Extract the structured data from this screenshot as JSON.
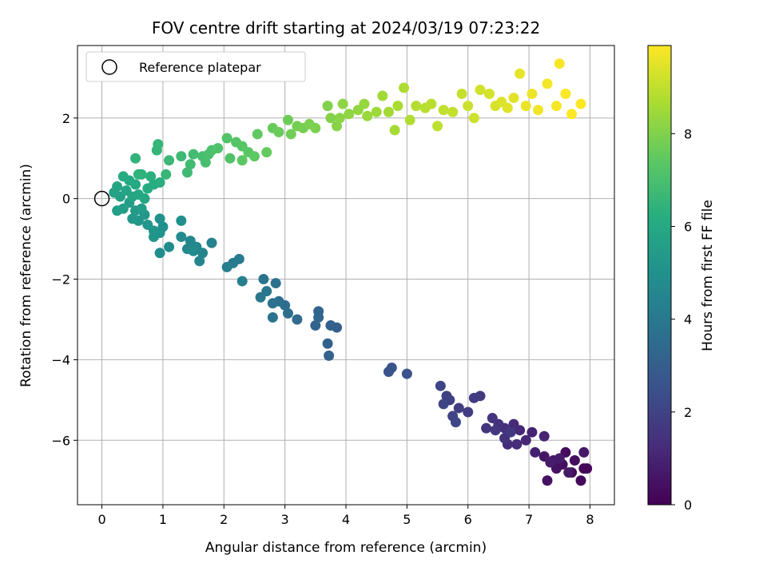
{
  "chart_data": {
    "type": "scatter",
    "title": "FOV centre drift starting at 2024/03/19 07:23:22",
    "xlabel": "Angular distance from reference (arcmin)",
    "ylabel": "Rotation from reference (arcmin)",
    "xlim": [
      -0.4,
      8.4
    ],
    "ylim": [
      -7.6,
      3.8
    ],
    "xticks": [
      0,
      1,
      2,
      3,
      4,
      5,
      6,
      7,
      8
    ],
    "yticks": [
      -6,
      -4,
      -2,
      0,
      2
    ],
    "grid": true,
    "legend": {
      "entries": [
        "Reference platepar"
      ],
      "placement": "top-left"
    },
    "reference_point": {
      "x": 0,
      "y": 0
    },
    "colorbar": {
      "label": "Hours from first FF file",
      "colormap": "viridis",
      "range": [
        0,
        9.9
      ],
      "ticks": [
        0,
        2,
        4,
        6,
        8
      ]
    },
    "points": [
      {
        "x": 7.9,
        "y": -6.7,
        "h": 0.1
      },
      {
        "x": 7.95,
        "y": -6.7,
        "h": 0.15
      },
      {
        "x": 7.85,
        "y": -7.0,
        "h": 0.2
      },
      {
        "x": 7.7,
        "y": -6.8,
        "h": 0.25
      },
      {
        "x": 7.6,
        "y": -6.3,
        "h": 0.3
      },
      {
        "x": 7.75,
        "y": -6.5,
        "h": 0.35
      },
      {
        "x": 7.55,
        "y": -6.6,
        "h": 0.4
      },
      {
        "x": 7.45,
        "y": -6.7,
        "h": 0.45
      },
      {
        "x": 7.3,
        "y": -7.0,
        "h": 0.5
      },
      {
        "x": 7.4,
        "y": -6.5,
        "h": 0.55
      },
      {
        "x": 7.25,
        "y": -6.4,
        "h": 0.6
      },
      {
        "x": 7.9,
        "y": -6.3,
        "h": 0.65
      },
      {
        "x": 7.65,
        "y": -6.8,
        "h": 0.7
      },
      {
        "x": 7.5,
        "y": -6.45,
        "h": 0.75
      },
      {
        "x": 7.35,
        "y": -6.55,
        "h": 0.8
      },
      {
        "x": 7.1,
        "y": -6.3,
        "h": 0.9
      },
      {
        "x": 7.05,
        "y": -5.8,
        "h": 1.0
      },
      {
        "x": 7.25,
        "y": -5.9,
        "h": 1.05
      },
      {
        "x": 6.95,
        "y": -6.0,
        "h": 1.1
      },
      {
        "x": 6.85,
        "y": -5.75,
        "h": 1.15
      },
      {
        "x": 6.75,
        "y": -5.6,
        "h": 1.2
      },
      {
        "x": 6.8,
        "y": -6.1,
        "h": 1.25
      },
      {
        "x": 6.65,
        "y": -6.1,
        "h": 1.3
      },
      {
        "x": 6.6,
        "y": -5.7,
        "h": 1.35
      },
      {
        "x": 6.5,
        "y": -5.6,
        "h": 1.4
      },
      {
        "x": 6.6,
        "y": -5.95,
        "h": 1.45
      },
      {
        "x": 6.4,
        "y": -5.45,
        "h": 1.5
      },
      {
        "x": 6.3,
        "y": -5.7,
        "h": 1.55
      },
      {
        "x": 6.45,
        "y": -5.75,
        "h": 1.6
      },
      {
        "x": 6.7,
        "y": -5.8,
        "h": 1.65
      },
      {
        "x": 6.2,
        "y": -4.9,
        "h": 1.7
      },
      {
        "x": 6.1,
        "y": -4.95,
        "h": 1.75
      },
      {
        "x": 6.0,
        "y": -5.3,
        "h": 1.8
      },
      {
        "x": 5.85,
        "y": -5.2,
        "h": 1.85
      },
      {
        "x": 5.7,
        "y": -5.0,
        "h": 1.9
      },
      {
        "x": 5.65,
        "y": -4.9,
        "h": 1.95
      },
      {
        "x": 5.75,
        "y": -5.4,
        "h": 2.0
      },
      {
        "x": 5.6,
        "y": -5.1,
        "h": 2.05
      },
      {
        "x": 5.55,
        "y": -4.65,
        "h": 2.1
      },
      {
        "x": 5.8,
        "y": -5.55,
        "h": 2.15
      },
      {
        "x": 5.0,
        "y": -4.35,
        "h": 2.5
      },
      {
        "x": 4.75,
        "y": -4.2,
        "h": 2.55
      },
      {
        "x": 4.7,
        "y": -4.3,
        "h": 2.6
      },
      {
        "x": 3.85,
        "y": -3.2,
        "h": 3.0
      },
      {
        "x": 3.75,
        "y": -3.15,
        "h": 3.05
      },
      {
        "x": 3.7,
        "y": -3.6,
        "h": 3.1
      },
      {
        "x": 3.72,
        "y": -3.9,
        "h": 3.15
      },
      {
        "x": 3.55,
        "y": -2.8,
        "h": 3.2
      },
      {
        "x": 3.5,
        "y": -3.15,
        "h": 3.25
      },
      {
        "x": 3.55,
        "y": -2.95,
        "h": 3.3
      },
      {
        "x": 3.2,
        "y": -3.0,
        "h": 3.5
      },
      {
        "x": 3.05,
        "y": -2.85,
        "h": 3.55
      },
      {
        "x": 3.0,
        "y": -2.65,
        "h": 3.6
      },
      {
        "x": 2.9,
        "y": -2.55,
        "h": 3.65
      },
      {
        "x": 2.8,
        "y": -2.6,
        "h": 3.7
      },
      {
        "x": 2.85,
        "y": -2.1,
        "h": 3.75
      },
      {
        "x": 2.8,
        "y": -2.95,
        "h": 3.8
      },
      {
        "x": 2.65,
        "y": -2.0,
        "h": 3.85
      },
      {
        "x": 2.7,
        "y": -2.3,
        "h": 3.9
      },
      {
        "x": 2.6,
        "y": -2.45,
        "h": 3.95
      },
      {
        "x": 2.25,
        "y": -1.5,
        "h": 4.1
      },
      {
        "x": 2.15,
        "y": -1.6,
        "h": 4.15
      },
      {
        "x": 2.05,
        "y": -1.7,
        "h": 4.2
      },
      {
        "x": 2.3,
        "y": -2.05,
        "h": 4.25
      },
      {
        "x": 1.8,
        "y": -1.1,
        "h": 4.4
      },
      {
        "x": 1.65,
        "y": -1.35,
        "h": 4.45
      },
      {
        "x": 1.6,
        "y": -1.55,
        "h": 4.5
      },
      {
        "x": 1.55,
        "y": -1.2,
        "h": 4.55
      },
      {
        "x": 1.45,
        "y": -1.05,
        "h": 4.6
      },
      {
        "x": 1.4,
        "y": -1.25,
        "h": 4.65
      },
      {
        "x": 1.5,
        "y": -1.3,
        "h": 4.7
      },
      {
        "x": 1.3,
        "y": -0.95,
        "h": 4.75
      },
      {
        "x": 1.1,
        "y": -1.2,
        "h": 4.8
      },
      {
        "x": 0.95,
        "y": -1.35,
        "h": 4.85
      },
      {
        "x": 1.3,
        "y": -0.55,
        "h": 4.9
      },
      {
        "x": 1.0,
        "y": -0.7,
        "h": 4.95
      },
      {
        "x": 0.95,
        "y": -0.5,
        "h": 5.0
      },
      {
        "x": 0.95,
        "y": -0.85,
        "h": 5.05
      },
      {
        "x": 0.85,
        "y": -0.95,
        "h": 5.1
      },
      {
        "x": 0.85,
        "y": -0.8,
        "h": 5.15
      },
      {
        "x": 0.75,
        "y": -0.65,
        "h": 5.2
      },
      {
        "x": 0.7,
        "y": -0.4,
        "h": 5.25
      },
      {
        "x": 0.6,
        "y": -0.55,
        "h": 5.3
      },
      {
        "x": 0.5,
        "y": -0.5,
        "h": 5.35
      },
      {
        "x": 0.55,
        "y": -0.3,
        "h": 5.4
      },
      {
        "x": 0.65,
        "y": -0.25,
        "h": 5.45
      },
      {
        "x": 0.45,
        "y": -0.1,
        "h": 5.5
      },
      {
        "x": 0.35,
        "y": -0.25,
        "h": 5.55
      },
      {
        "x": 0.25,
        "y": -0.3,
        "h": 5.6
      },
      {
        "x": 0.3,
        "y": 0.05,
        "h": 5.65
      },
      {
        "x": 0.2,
        "y": 0.15,
        "h": 5.7
      },
      {
        "x": 0.25,
        "y": 0.3,
        "h": 5.75
      },
      {
        "x": 0.4,
        "y": 0.2,
        "h": 5.8
      },
      {
        "x": 0.5,
        "y": 0.05,
        "h": 5.85
      },
      {
        "x": 0.6,
        "y": 0.1,
        "h": 5.9
      },
      {
        "x": 0.7,
        "y": 0.0,
        "h": 5.95
      },
      {
        "x": 0.55,
        "y": 0.35,
        "h": 6.0
      },
      {
        "x": 0.45,
        "y": 0.45,
        "h": 6.05
      },
      {
        "x": 0.35,
        "y": 0.55,
        "h": 6.1
      },
      {
        "x": 0.75,
        "y": 0.25,
        "h": 6.15
      },
      {
        "x": 0.85,
        "y": 0.35,
        "h": 6.2
      },
      {
        "x": 0.95,
        "y": 0.4,
        "h": 6.25
      },
      {
        "x": 0.8,
        "y": 0.55,
        "h": 6.3
      },
      {
        "x": 0.65,
        "y": 0.6,
        "h": 6.35
      },
      {
        "x": 0.6,
        "y": 0.6,
        "h": 6.4
      },
      {
        "x": 0.55,
        "y": 1.0,
        "h": 6.45
      },
      {
        "x": 0.9,
        "y": 1.2,
        "h": 6.5
      },
      {
        "x": 0.92,
        "y": 1.35,
        "h": 6.55
      },
      {
        "x": 1.05,
        "y": 0.6,
        "h": 6.6
      },
      {
        "x": 1.1,
        "y": 0.95,
        "h": 6.65
      },
      {
        "x": 1.3,
        "y": 1.05,
        "h": 6.7
      },
      {
        "x": 1.4,
        "y": 0.65,
        "h": 6.75
      },
      {
        "x": 1.45,
        "y": 0.85,
        "h": 6.8
      },
      {
        "x": 1.5,
        "y": 1.1,
        "h": 6.85
      },
      {
        "x": 1.65,
        "y": 1.05,
        "h": 6.9
      },
      {
        "x": 1.7,
        "y": 0.9,
        "h": 6.95
      },
      {
        "x": 1.75,
        "y": 1.1,
        "h": 7.0
      },
      {
        "x": 1.8,
        "y": 1.2,
        "h": 7.05
      },
      {
        "x": 1.9,
        "y": 1.25,
        "h": 7.1
      },
      {
        "x": 2.1,
        "y": 1.0,
        "h": 7.15
      },
      {
        "x": 2.05,
        "y": 1.5,
        "h": 7.2
      },
      {
        "x": 2.2,
        "y": 1.4,
        "h": 7.25
      },
      {
        "x": 2.3,
        "y": 1.3,
        "h": 7.3
      },
      {
        "x": 2.4,
        "y": 1.15,
        "h": 7.35
      },
      {
        "x": 2.3,
        "y": 0.95,
        "h": 7.4
      },
      {
        "x": 2.5,
        "y": 1.05,
        "h": 7.45
      },
      {
        "x": 2.55,
        "y": 1.6,
        "h": 7.5
      },
      {
        "x": 2.7,
        "y": 1.15,
        "h": 7.55
      },
      {
        "x": 2.8,
        "y": 1.75,
        "h": 7.6
      },
      {
        "x": 2.9,
        "y": 1.65,
        "h": 7.65
      },
      {
        "x": 3.05,
        "y": 1.95,
        "h": 7.7
      },
      {
        "x": 3.1,
        "y": 1.6,
        "h": 7.75
      },
      {
        "x": 3.2,
        "y": 1.8,
        "h": 7.8
      },
      {
        "x": 3.3,
        "y": 1.75,
        "h": 7.85
      },
      {
        "x": 3.4,
        "y": 1.85,
        "h": 7.9
      },
      {
        "x": 3.5,
        "y": 1.75,
        "h": 7.95
      },
      {
        "x": 3.7,
        "y": 2.3,
        "h": 8.0
      },
      {
        "x": 3.75,
        "y": 2.0,
        "h": 8.05
      },
      {
        "x": 3.85,
        "y": 1.8,
        "h": 8.1
      },
      {
        "x": 3.9,
        "y": 2.0,
        "h": 8.15
      },
      {
        "x": 3.95,
        "y": 2.35,
        "h": 8.2
      },
      {
        "x": 4.05,
        "y": 2.1,
        "h": 8.25
      },
      {
        "x": 4.2,
        "y": 2.2,
        "h": 8.3
      },
      {
        "x": 4.3,
        "y": 2.35,
        "h": 8.35
      },
      {
        "x": 4.35,
        "y": 2.05,
        "h": 8.4
      },
      {
        "x": 4.5,
        "y": 2.15,
        "h": 8.45
      },
      {
        "x": 4.6,
        "y": 2.55,
        "h": 8.5
      },
      {
        "x": 4.7,
        "y": 2.15,
        "h": 8.55
      },
      {
        "x": 4.8,
        "y": 1.7,
        "h": 8.6
      },
      {
        "x": 4.85,
        "y": 2.3,
        "h": 8.65
      },
      {
        "x": 4.95,
        "y": 2.75,
        "h": 8.7
      },
      {
        "x": 5.05,
        "y": 1.95,
        "h": 8.75
      },
      {
        "x": 5.15,
        "y": 2.3,
        "h": 8.8
      },
      {
        "x": 5.3,
        "y": 2.25,
        "h": 8.85
      },
      {
        "x": 5.4,
        "y": 2.35,
        "h": 8.9
      },
      {
        "x": 5.5,
        "y": 1.8,
        "h": 8.95
      },
      {
        "x": 5.6,
        "y": 2.2,
        "h": 9.0
      },
      {
        "x": 5.75,
        "y": 2.15,
        "h": 9.05
      },
      {
        "x": 5.9,
        "y": 2.6,
        "h": 9.1
      },
      {
        "x": 6.0,
        "y": 2.3,
        "h": 9.15
      },
      {
        "x": 6.1,
        "y": 2.0,
        "h": 9.2
      },
      {
        "x": 6.2,
        "y": 2.7,
        "h": 9.25
      },
      {
        "x": 6.35,
        "y": 2.6,
        "h": 9.3
      },
      {
        "x": 6.45,
        "y": 2.3,
        "h": 9.35
      },
      {
        "x": 6.55,
        "y": 2.4,
        "h": 9.4
      },
      {
        "x": 6.65,
        "y": 2.25,
        "h": 9.45
      },
      {
        "x": 6.75,
        "y": 2.5,
        "h": 9.5
      },
      {
        "x": 6.85,
        "y": 3.1,
        "h": 9.55
      },
      {
        "x": 6.95,
        "y": 2.3,
        "h": 9.6
      },
      {
        "x": 7.05,
        "y": 2.6,
        "h": 9.65
      },
      {
        "x": 7.15,
        "y": 2.2,
        "h": 9.7
      },
      {
        "x": 7.3,
        "y": 2.85,
        "h": 9.75
      },
      {
        "x": 7.45,
        "y": 2.3,
        "h": 9.8
      },
      {
        "x": 7.5,
        "y": 3.35,
        "h": 9.82
      },
      {
        "x": 7.6,
        "y": 2.6,
        "h": 9.85
      },
      {
        "x": 7.7,
        "y": 2.1,
        "h": 9.88
      },
      {
        "x": 7.85,
        "y": 2.35,
        "h": 9.9
      }
    ]
  }
}
